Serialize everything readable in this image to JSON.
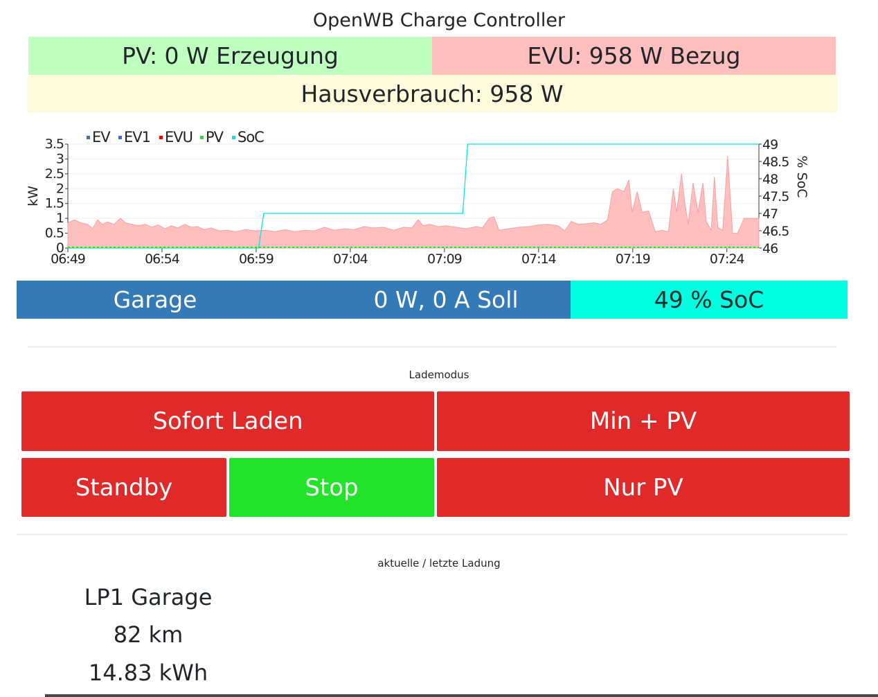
{
  "header": {
    "title": "OpenWB Charge Controller"
  },
  "summary": {
    "pv": "PV: 0 W Erzeugung",
    "evu": "EVU: 958 W Bezug",
    "house": "Hausverbrauch: 958 W",
    "colors": {
      "pv_bg": "#bfffbf",
      "evu_bg": "#ffbfbf",
      "house_bg": "#fcfcdc"
    }
  },
  "chart_data": {
    "type": "area",
    "legend": [
      {
        "name": "EV",
        "color": "#337ab7"
      },
      {
        "name": "EV1",
        "color": "#3a6fd8"
      },
      {
        "name": "EVU",
        "color": "#ff0000"
      },
      {
        "name": "PV",
        "color": "#22e22a"
      },
      {
        "name": "SoC",
        "color": "#00e6e6"
      }
    ],
    "legend_position": "top-left",
    "x_ticks": [
      "06:49",
      "06:54",
      "06:59",
      "07:04",
      "07:09",
      "07:14",
      "07:19",
      "07:24"
    ],
    "ylabel": "kW",
    "ylim": [
      0,
      3.5
    ],
    "y_ticks": [
      "0",
      "0.5",
      "1",
      "1.5",
      "2",
      "2.5",
      "3",
      "3.5"
    ],
    "y2label": "% SoC",
    "y2lim": [
      46,
      49
    ],
    "y2_ticks": [
      "46",
      "46.5",
      "47",
      "47.5",
      "48",
      "48.5",
      "49"
    ],
    "x_range_minutes": [
      0,
      36
    ],
    "series": [
      {
        "name": "EVU",
        "unit": "kW",
        "color": "#ff0000",
        "fill": "#ffbfbf",
        "points": [
          [
            0,
            0.85
          ],
          [
            0.4,
            0.95
          ],
          [
            0.8,
            0.85
          ],
          [
            1.2,
            0.8
          ],
          [
            1.5,
            0.65
          ],
          [
            1.8,
            0.95
          ],
          [
            2.1,
            0.8
          ],
          [
            2.4,
            0.88
          ],
          [
            2.8,
            0.8
          ],
          [
            3.2,
            1.0
          ],
          [
            3.5,
            0.85
          ],
          [
            3.9,
            0.8
          ],
          [
            4.3,
            0.75
          ],
          [
            4.7,
            0.8
          ],
          [
            5.1,
            0.7
          ],
          [
            5.5,
            0.78
          ],
          [
            5.9,
            0.65
          ],
          [
            6.3,
            0.75
          ],
          [
            6.7,
            0.68
          ],
          [
            7.1,
            0.8
          ],
          [
            7.5,
            0.7
          ],
          [
            7.9,
            0.72
          ],
          [
            8.3,
            0.62
          ],
          [
            8.7,
            0.68
          ],
          [
            9.2,
            0.58
          ],
          [
            9.7,
            0.6
          ],
          [
            10.2,
            0.55
          ],
          [
            10.8,
            0.62
          ],
          [
            11.4,
            0.58
          ],
          [
            12.0,
            0.6
          ],
          [
            12.6,
            0.55
          ],
          [
            13.2,
            0.62
          ],
          [
            13.8,
            0.55
          ],
          [
            14.4,
            0.6
          ],
          [
            15.0,
            0.58
          ],
          [
            15.6,
            0.7
          ],
          [
            16.2,
            0.6
          ],
          [
            16.8,
            0.65
          ],
          [
            17.4,
            0.62
          ],
          [
            18.0,
            0.72
          ],
          [
            18.6,
            0.68
          ],
          [
            19.2,
            0.7
          ],
          [
            19.8,
            0.6
          ],
          [
            20.4,
            0.7
          ],
          [
            20.9,
            0.68
          ],
          [
            21.3,
            0.95
          ],
          [
            21.6,
            0.75
          ],
          [
            22.0,
            0.8
          ],
          [
            22.5,
            0.72
          ],
          [
            23.0,
            0.75
          ],
          [
            23.6,
            0.7
          ],
          [
            24.2,
            0.65
          ],
          [
            24.8,
            0.72
          ],
          [
            25.2,
            0.68
          ],
          [
            25.6,
            1.0
          ],
          [
            25.9,
            1.05
          ],
          [
            26.2,
            0.6
          ],
          [
            26.8,
            0.65
          ],
          [
            27.4,
            0.7
          ],
          [
            28.0,
            0.72
          ],
          [
            28.6,
            0.78
          ],
          [
            29.2,
            0.8
          ],
          [
            29.8,
            0.75
          ],
          [
            30.2,
            0.58
          ],
          [
            30.6,
            0.9
          ],
          [
            31.0,
            0.8
          ],
          [
            31.5,
            0.82
          ],
          [
            32.0,
            0.85
          ],
          [
            32.4,
            0.8
          ],
          [
            32.8,
            0.95
          ],
          [
            33.1,
            1.9
          ],
          [
            33.4,
            2.0
          ],
          [
            33.8,
            1.9
          ],
          [
            34.1,
            2.3
          ],
          [
            34.3,
            1.2
          ],
          [
            34.6,
            1.9
          ],
          [
            34.9,
            1.2
          ],
          [
            35.3,
            1.25
          ],
          [
            35.7,
            0.55
          ],
          [
            36.1,
            0.6
          ],
          [
            36.5,
            0.55
          ],
          [
            36.8,
            2.0
          ],
          [
            37.0,
            1.2
          ],
          [
            37.3,
            2.5
          ],
          [
            37.5,
            1.5
          ],
          [
            37.7,
            0.8
          ],
          [
            38.0,
            2.2
          ],
          [
            38.3,
            1.2
          ],
          [
            38.6,
            2.2
          ],
          [
            38.8,
            0.9
          ],
          [
            39.1,
            0.6
          ],
          [
            39.3,
            2.4
          ],
          [
            39.5,
            0.7
          ],
          [
            39.8,
            0.6
          ],
          [
            40.1,
            3.1
          ],
          [
            40.4,
            0.5
          ],
          [
            40.7,
            0.5
          ],
          [
            41.1,
            1.0
          ],
          [
            41.5,
            1.0
          ],
          [
            42.0,
            1.0
          ]
        ]
      },
      {
        "name": "SoC",
        "unit": "%",
        "axis": "right",
        "color": "#00e6e6",
        "points": [
          [
            0,
            46
          ],
          [
            11.6,
            46
          ],
          [
            11.9,
            47
          ],
          [
            24.0,
            47
          ],
          [
            24.3,
            49
          ],
          [
            42.0,
            49
          ]
        ]
      },
      {
        "name": "PV",
        "unit": "kW",
        "color": "#22e22a",
        "points": [
          [
            0,
            0
          ],
          [
            42,
            0
          ]
        ]
      },
      {
        "name": "EV",
        "unit": "kW",
        "color": "#337ab7",
        "points": [
          [
            0,
            0
          ],
          [
            42,
            0
          ]
        ]
      },
      {
        "name": "EV1",
        "unit": "kW",
        "color": "#3a6fd8",
        "points": [
          [
            0,
            0
          ],
          [
            42,
            0
          ]
        ]
      }
    ]
  },
  "loadpoint": {
    "name": "Garage",
    "power": "0 W, 0 A Soll",
    "soc": "49 % SoC",
    "colors": {
      "main_bg": "#337ab7",
      "soc_bg": "#00ffe1"
    }
  },
  "lademodus": {
    "label": "Lademodus",
    "buttons": {
      "sofort": "Sofort Laden",
      "minpv": "Min + PV",
      "standby": "Standby",
      "stop": "Stop",
      "nurpv": "Nur PV"
    },
    "active": "stop",
    "colors": {
      "inactive": "#e02929",
      "active": "#22e22a"
    }
  },
  "last_charge": {
    "label": "aktuelle / letzte Ladung",
    "lp": "LP1 Garage",
    "km": "82 km",
    "kwh": "14.83 kWh"
  }
}
